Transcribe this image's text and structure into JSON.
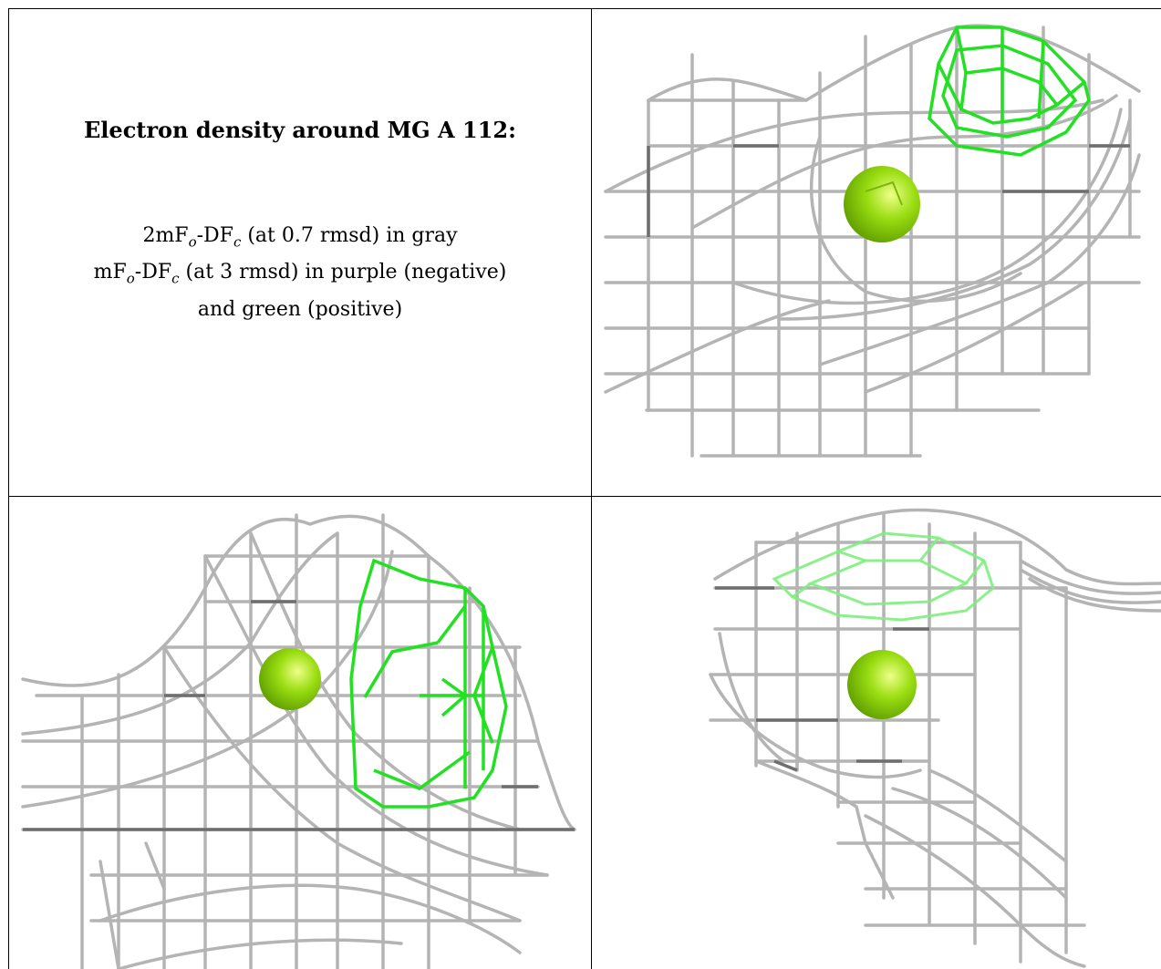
{
  "caption": {
    "title": "Electron density around MG A 112:",
    "line1": {
      "prefix": "2mF",
      "sub1": "o",
      "mid": "-DF",
      "sub2": "c",
      "suffix": " (at 0.7 rmsd) in gray"
    },
    "line2": {
      "prefix": "mF",
      "sub1": "o",
      "mid": "-DF",
      "sub2": "c",
      "suffix": " (at 3 rmsd) in purple (negative)"
    },
    "line3": "and green (positive)"
  },
  "colors": {
    "mesh_gray": "#b4b4b4",
    "mesh_dark": "#6e6e6e",
    "mesh_green": "#22e022",
    "atom": "#99dd11",
    "atom_highlight": "#eeff88"
  },
  "views": [
    {
      "name": "view-top-right",
      "atom": "MG A 112"
    },
    {
      "name": "view-bottom-left",
      "atom": "MG A 112"
    },
    {
      "name": "view-bottom-right",
      "atom": "MG A 112"
    }
  ]
}
